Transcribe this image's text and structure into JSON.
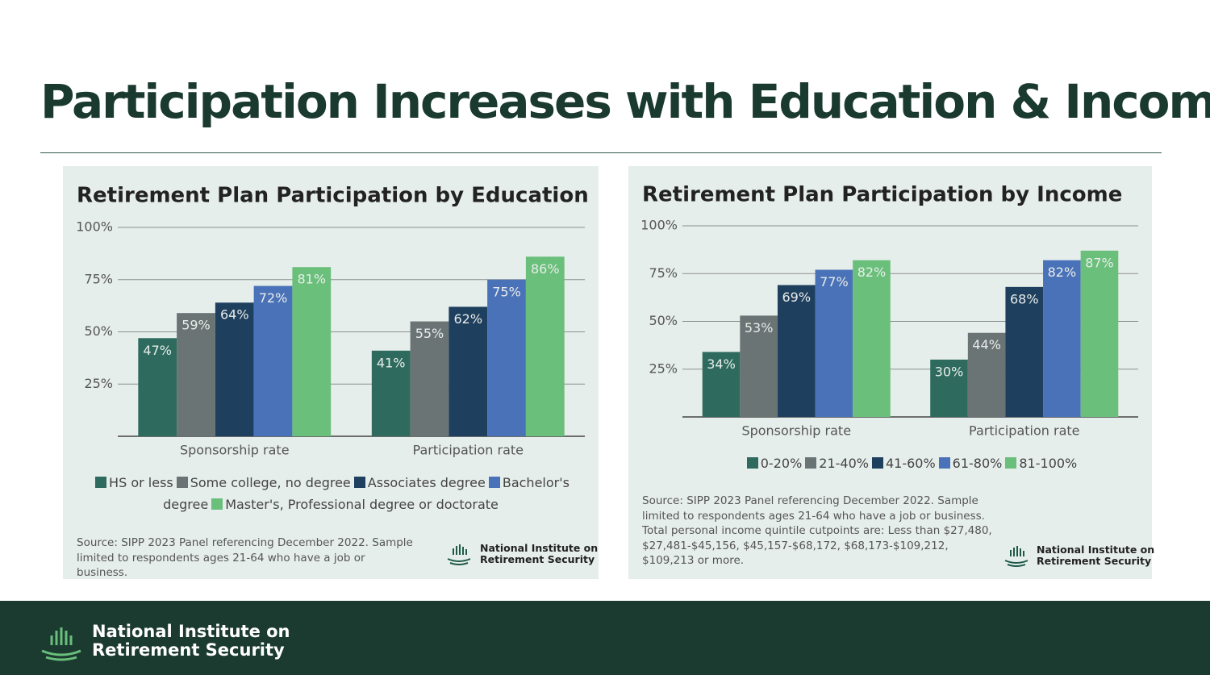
{
  "title": "Participation Increases with Education & Income",
  "brand": [
    "National Institute on",
    "Retirement Security"
  ],
  "chart_data": [
    {
      "type": "bar",
      "title": "Retirement Plan Participation by Education",
      "categories": [
        "Sponsorship rate",
        "Participation rate"
      ],
      "series": [
        {
          "name": "HS or less",
          "color": "#2e6b5e",
          "values": [
            47,
            41
          ],
          "value_labels": [
            "47%",
            "41%"
          ]
        },
        {
          "name": "Some college, no degree",
          "color": "#6b7474",
          "values": [
            59,
            55
          ],
          "value_labels": [
            "59%",
            "55%"
          ]
        },
        {
          "name": "Associates degree",
          "color": "#1e3f5e",
          "values": [
            64,
            62
          ],
          "value_labels": [
            "64%",
            "62%"
          ]
        },
        {
          "name": "Bachelor's degree",
          "color": "#4a72b8",
          "values": [
            72,
            75
          ],
          "value_labels": [
            "72%",
            "75%"
          ]
        },
        {
          "name": "Master's, Professional degree or doctorate",
          "color": "#6abf7b",
          "values": [
            81,
            86
          ],
          "value_labels": [
            "81%",
            "86%"
          ]
        }
      ],
      "ylim": [
        0,
        100
      ],
      "yticks": [
        {
          "value": 25,
          "label": "25%"
        },
        {
          "value": 50,
          "label": "50%"
        },
        {
          "value": 75,
          "label": "75%"
        },
        {
          "value": 100,
          "label": "100%"
        }
      ],
      "grid": true,
      "legend": "bottom",
      "source": "Source: SIPP 2023 Panel referencing December 2022. Sample limited to respondents ages 21-64 who have a job or business."
    },
    {
      "type": "bar",
      "title": "Retirement Plan Participation by Income",
      "categories": [
        "Sponsorship rate",
        "Participation rate"
      ],
      "series": [
        {
          "name": "0-20%",
          "color": "#2e6b5e",
          "values": [
            34,
            30
          ],
          "value_labels": [
            "34%",
            "30%"
          ]
        },
        {
          "name": "21-40%",
          "color": "#6b7474",
          "values": [
            53,
            44
          ],
          "value_labels": [
            "53%",
            "44%"
          ]
        },
        {
          "name": "41-60%",
          "color": "#1e3f5e",
          "values": [
            69,
            68
          ],
          "value_labels": [
            "69%",
            "68%"
          ]
        },
        {
          "name": "61-80%",
          "color": "#4a72b8",
          "values": [
            77,
            82
          ],
          "value_labels": [
            "77%",
            "82%"
          ]
        },
        {
          "name": "81-100%",
          "color": "#6abf7b",
          "values": [
            82,
            87
          ],
          "value_labels": [
            "82%",
            "87%"
          ]
        }
      ],
      "ylim": [
        0,
        100
      ],
      "yticks": [
        {
          "value": 25,
          "label": "25%"
        },
        {
          "value": 50,
          "label": "50%"
        },
        {
          "value": 75,
          "label": "75%"
        },
        {
          "value": 100,
          "label": "100%"
        }
      ],
      "grid": true,
      "legend": "bottom",
      "source": "Source: SIPP 2023 Panel referencing December 2022. Sample limited to respondents ages 21-64 who have a job or business. Total personal income quintile cutpoints are: Less than $27,480, $27,481-$45,156, $45,157-$68,172, $68,173-$109,212, $109,213 or more."
    }
  ]
}
